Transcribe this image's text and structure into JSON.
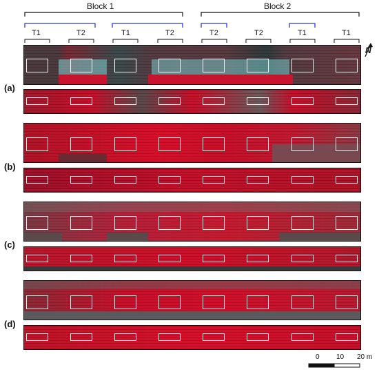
{
  "blocks": [
    {
      "label": "Block 1"
    },
    {
      "label": "Block 2"
    }
  ],
  "treatments": [
    "T1",
    "T2",
    "T1",
    "T2",
    "T2",
    "T2",
    "T1",
    "T1"
  ],
  "panels": [
    {
      "label": "(a)"
    },
    {
      "label": "(b)"
    },
    {
      "label": "(c)"
    },
    {
      "label": "(d)"
    }
  ],
  "north": {
    "label": "N"
  },
  "scale_bar": {
    "ticks": [
      "0",
      "10",
      "20 m"
    ]
  },
  "colors": {
    "crop_red": "#d8102a",
    "dark_red": "#6b0e18",
    "soil_gray": "#5a5a5c",
    "cyan_patch": "#78c8c8",
    "bracket_black": "#111111",
    "bracket_blue": "#2e35d6",
    "plot_box": "#f5f5f5"
  }
}
